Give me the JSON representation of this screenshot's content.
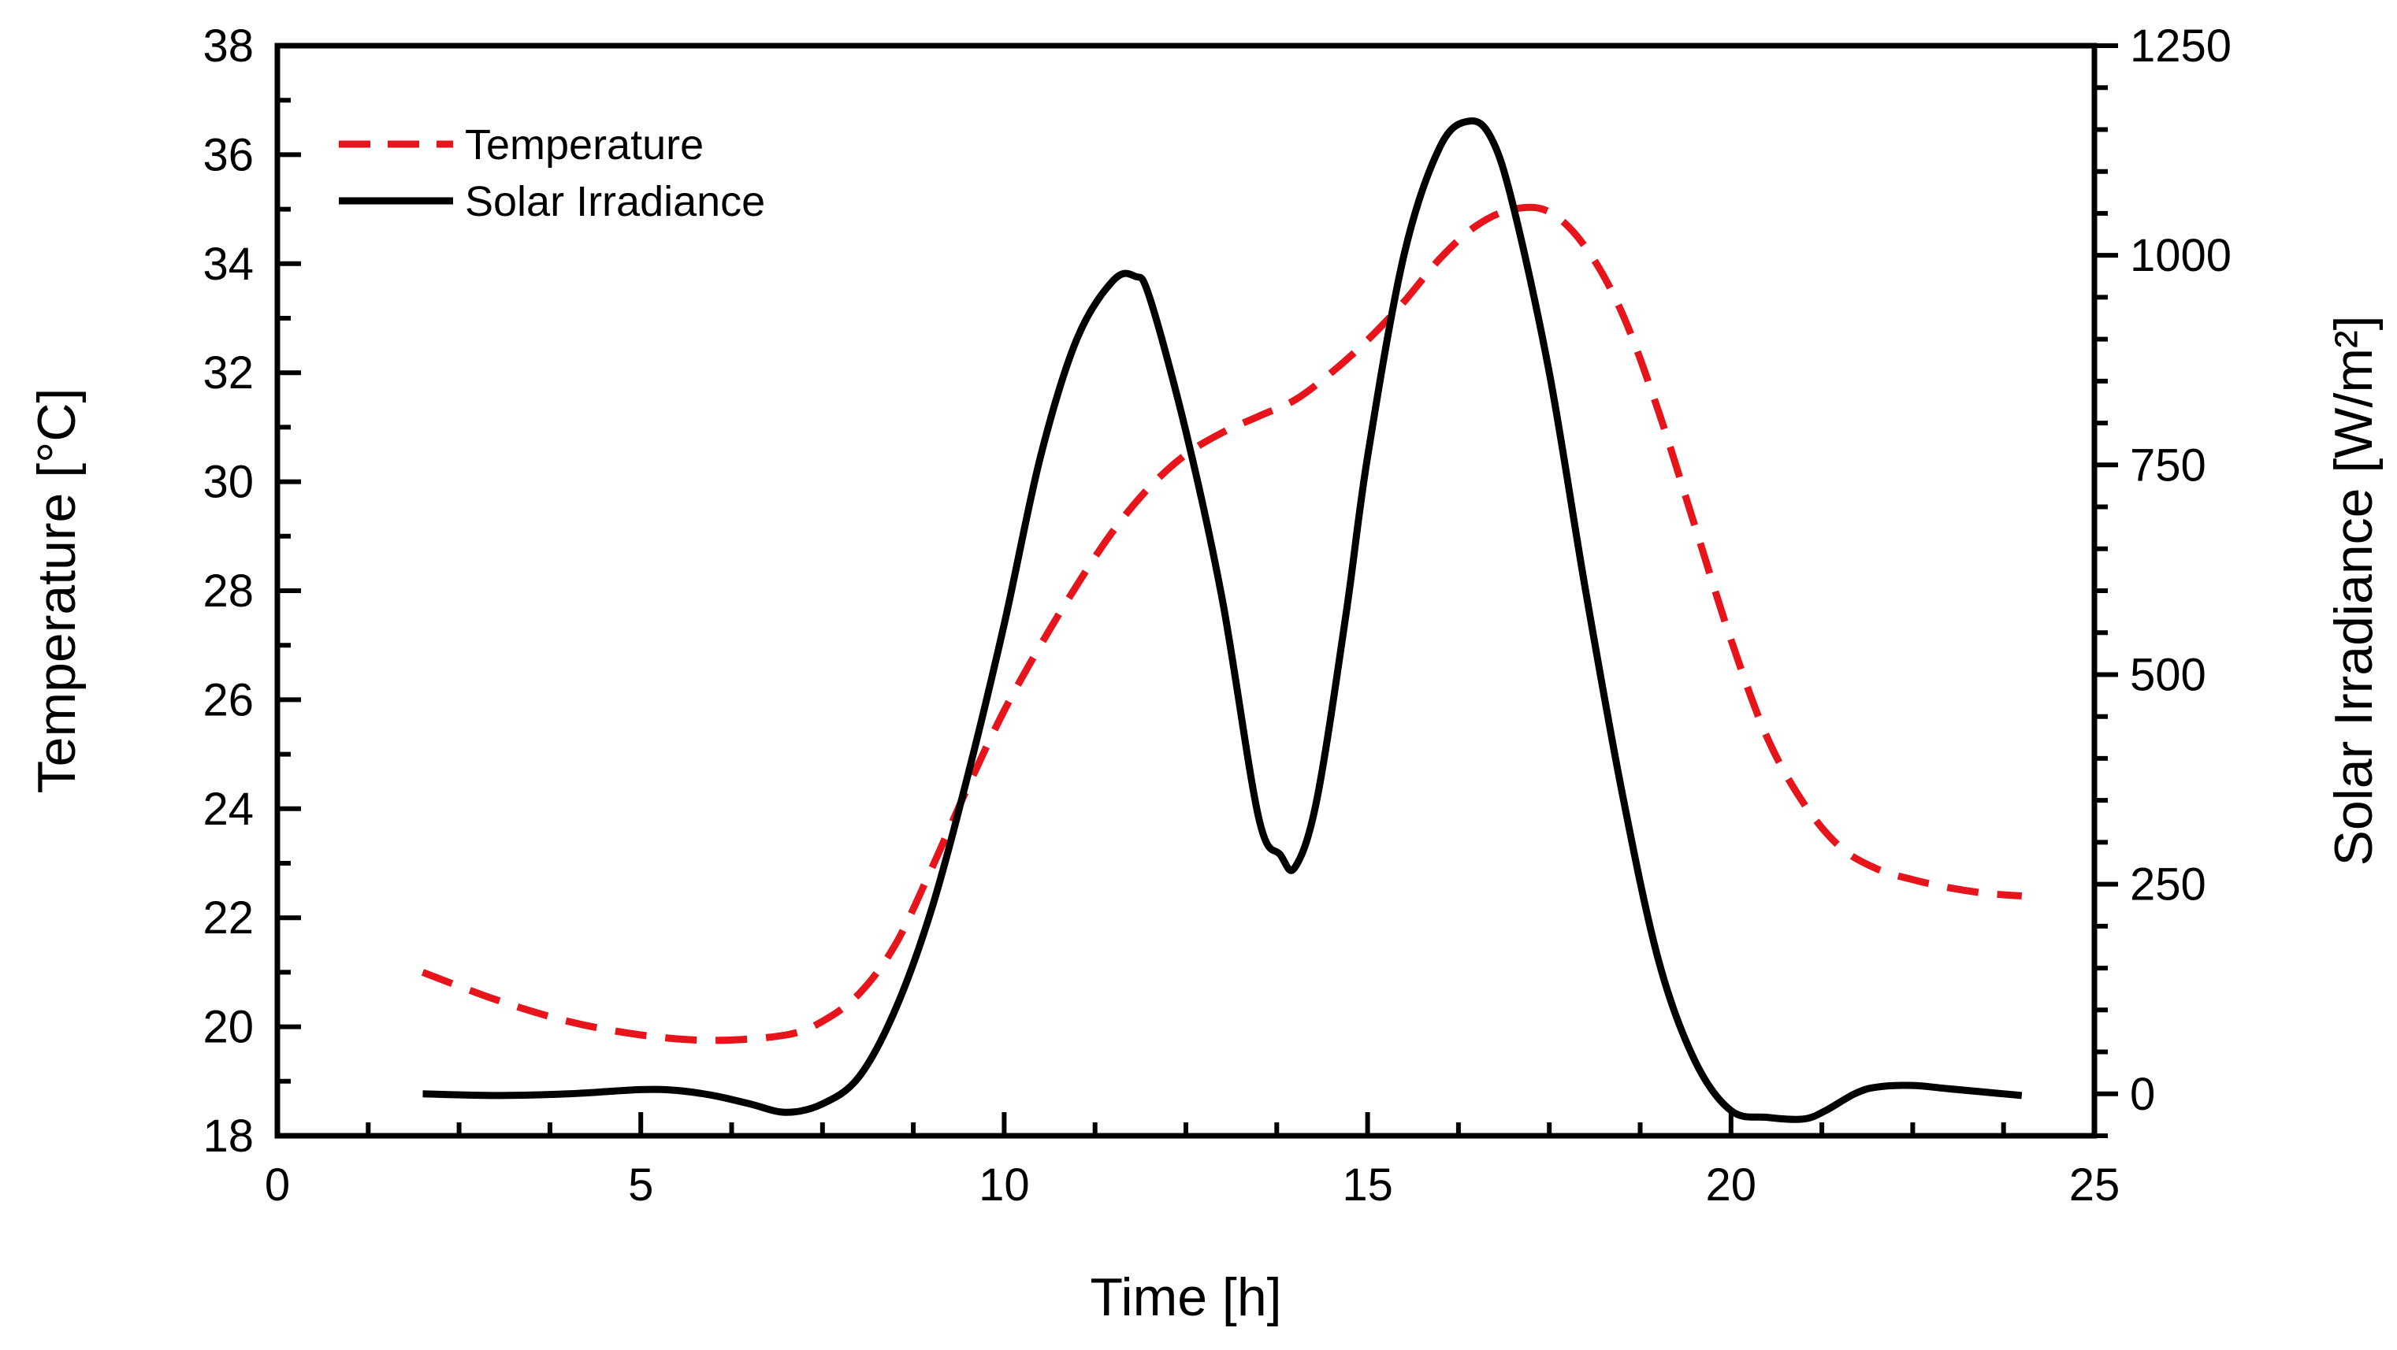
{
  "chart_data": {
    "type": "line",
    "title": "",
    "xlabel": "Time [h]",
    "ylabel_left": "Temperature [°C]",
    "ylabel_right": "Solar Irradiance [W/m²]",
    "xlim": [
      0,
      25
    ],
    "ylim_left": [
      18,
      38
    ],
    "ylim_right": [
      -50,
      1250
    ],
    "x_ticks": [
      0,
      5,
      10,
      15,
      20,
      25
    ],
    "y_left_ticks": [
      18,
      20,
      22,
      24,
      26,
      28,
      30,
      32,
      34,
      36,
      38
    ],
    "y_right_ticks": [
      0,
      250,
      500,
      750,
      1000,
      1250
    ],
    "grid": false,
    "legend_position": "top-left",
    "colors": {
      "temperature": "#e8141b",
      "irradiance": "#000000"
    },
    "series": [
      {
        "name": "Temperature",
        "axis": "left",
        "style": "dashed",
        "x": [
          2,
          3,
          4,
          5,
          6,
          7,
          7.5,
          8,
          8.5,
          9,
          9.5,
          10,
          10.5,
          11,
          11.5,
          12,
          12.5,
          13,
          13.5,
          14,
          14.5,
          15,
          15.5,
          16,
          16.5,
          17,
          17.5,
          18,
          18.5,
          19,
          19.5,
          20,
          20.5,
          21,
          21.5,
          22,
          22.5,
          23,
          23.5,
          24
        ],
        "values": [
          21.0,
          20.5,
          20.1,
          19.85,
          19.75,
          19.85,
          20.1,
          20.6,
          21.5,
          22.9,
          24.4,
          25.8,
          27.0,
          28.1,
          29.1,
          29.9,
          30.5,
          30.9,
          31.2,
          31.5,
          32.0,
          32.6,
          33.3,
          34.1,
          34.7,
          35.0,
          34.95,
          34.3,
          33.1,
          31.3,
          29.2,
          27.1,
          25.3,
          24.1,
          23.3,
          22.9,
          22.7,
          22.55,
          22.45,
          22.4
        ]
      },
      {
        "name": "Solar Irradiance",
        "axis": "right",
        "style": "solid",
        "x": [
          2,
          3,
          4,
          5,
          5.5,
          6,
          6.5,
          7,
          7.5,
          8,
          8.5,
          9,
          9.5,
          10,
          10.5,
          11,
          11.5,
          11.8,
          12,
          12.5,
          13,
          13.5,
          13.8,
          14,
          14.3,
          14.7,
          15,
          15.5,
          16,
          16.4,
          16.7,
          17,
          17.5,
          18,
          18.5,
          19,
          19.5,
          20,
          20.5,
          21,
          21.3,
          21.7,
          22,
          22.5,
          23,
          23.5,
          24
        ],
        "values": [
          0,
          -2,
          0,
          5,
          4,
          -2,
          -12,
          -22,
          -12,
          20,
          100,
          220,
          380,
          560,
          760,
          900,
          970,
          975,
          950,
          790,
          590,
          330,
          285,
          270,
          350,
          570,
          760,
          1000,
          1130,
          1160,
          1140,
          1060,
          860,
          600,
          360,
          160,
          40,
          -20,
          -28,
          -30,
          -20,
          0,
          8,
          10,
          6,
          2,
          -2
        ]
      }
    ]
  }
}
